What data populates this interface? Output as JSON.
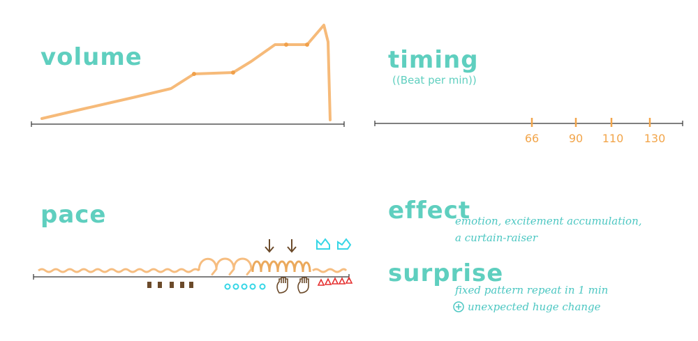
{
  "panels": {
    "volume": {
      "title": "volume"
    },
    "timing": {
      "title": "timing",
      "subtitle": "((Beat per min))",
      "ticks": [
        "66",
        "90",
        "110",
        "130"
      ]
    },
    "pace": {
      "title": "pace"
    },
    "effect": {
      "title": "effect",
      "lines": [
        "emotion, excitement accumulation,",
        "a curtain-raiser"
      ]
    },
    "surprise": {
      "title": "surprise",
      "lines": [
        "fixed pattern repeat in 1 min",
        "unexpected huge change"
      ]
    }
  },
  "colors": {
    "title": "#5fcfbf",
    "stroke": "#f2a54a",
    "brown": "#6b4a2a",
    "cyan": "#36d6e6",
    "red": "#e53030"
  },
  "icons": [
    "down-arrow-icon",
    "hand-icon",
    "crown-icon",
    "square-marker-icon",
    "circle-marker-icon",
    "triangle-marker-icon",
    "plus-circle-icon"
  ]
}
